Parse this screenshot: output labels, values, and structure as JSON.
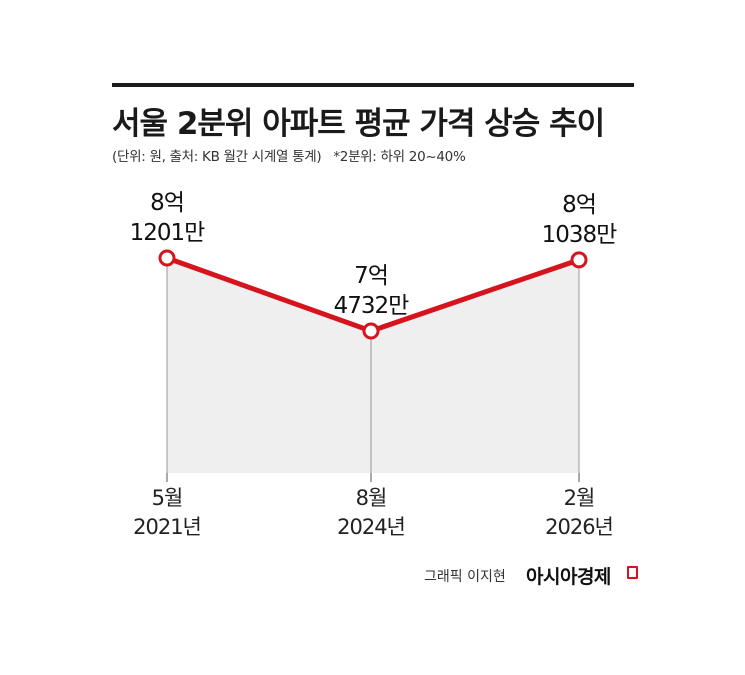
{
  "header": {
    "title": "서울 2분위 아파트 평균 가격 상승 추이",
    "subtitle": "(단위: 원, 출처: KB 월간 시계열 통계)",
    "note": "*2분위: 하위 20~40%"
  },
  "footer": {
    "credit": "그래픽 이지현",
    "brand": "아시아경제"
  },
  "colors": {
    "line": "#d6141e",
    "fill": "#efefef",
    "guide": "#9a9a9a"
  },
  "chart_data": {
    "type": "line",
    "x": [
      "5월 2021년",
      "8월 2024년",
      "2월 2026년"
    ],
    "x_month_labels": [
      "5월",
      "8월",
      "2월"
    ],
    "x_year_labels": [
      "2021년",
      "2024년",
      "2026년"
    ],
    "series": [
      {
        "values": [
          812010000,
          747320000,
          810380000
        ],
        "value_labels_line1": [
          "8억",
          "7억",
          "8억"
        ],
        "value_labels_line2": [
          "1201만",
          "4732만",
          "1038만"
        ]
      }
    ]
  }
}
